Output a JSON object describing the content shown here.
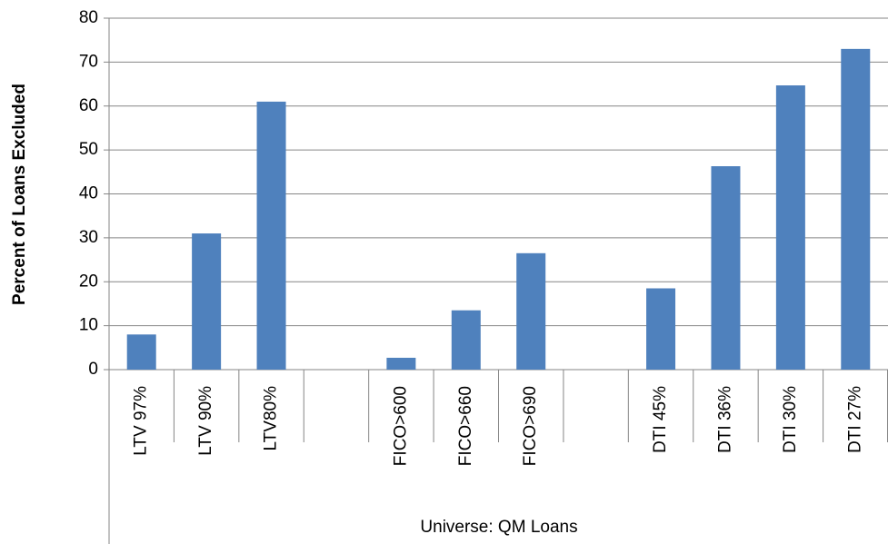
{
  "chart_data": {
    "type": "bar",
    "y_label": "Percent of Loans Excluded",
    "x_label": "Universe: QM Loans",
    "categories": [
      "LTV 97%",
      "LTV 90%",
      "LTV80%",
      null,
      "FICO>600",
      "FICO>660",
      "FICO>690",
      null,
      "DTI 45%",
      "DTI 36%",
      "DTI 30%",
      "DTI 27%"
    ],
    "values": [
      8,
      31,
      61,
      null,
      2.7,
      13.5,
      26.5,
      null,
      18.5,
      46.3,
      64.7,
      73
    ],
    "color": "#4f81bd",
    "ylim": [
      0,
      80
    ],
    "yticks": [
      0,
      10,
      20,
      30,
      40,
      50,
      60,
      70,
      80
    ],
    "grid": true
  }
}
